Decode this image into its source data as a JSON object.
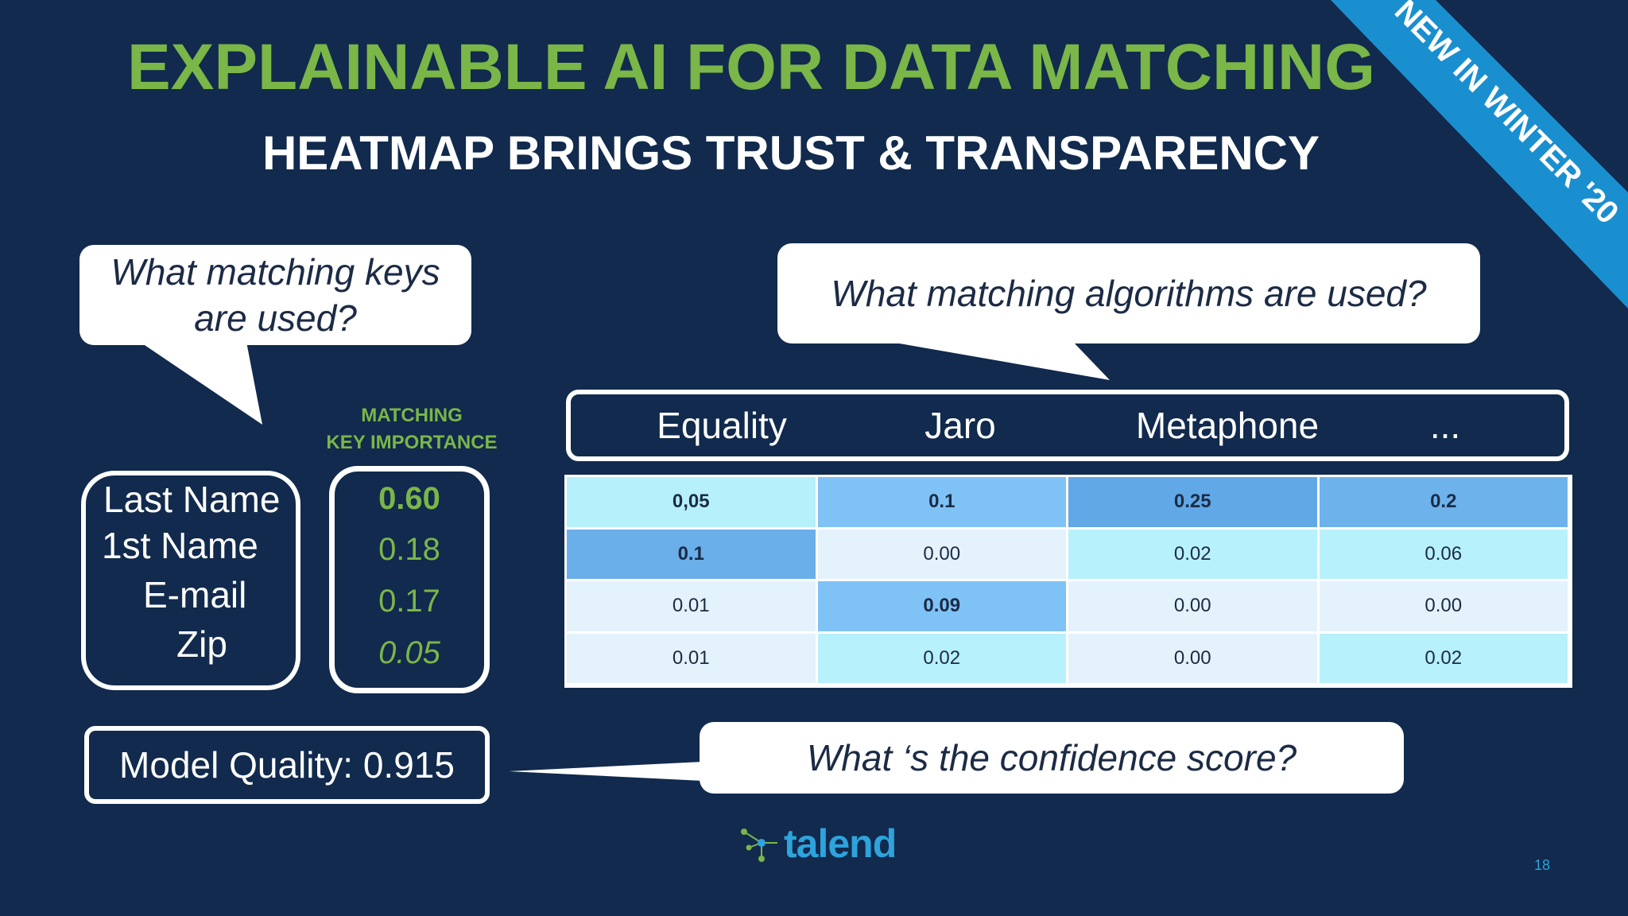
{
  "title": "EXPLAINABLE AI FOR DATA MATCHING",
  "subtitle": "HEATMAP BRINGS TRUST & TRANSPARENCY",
  "ribbon": {
    "text": "NEW IN WINTER '20",
    "color": "#1a8fd0"
  },
  "bubbles": {
    "keys_line1": "What matching keys",
    "keys_line2": "are used?",
    "algorithms": "What matching algorithms are used?",
    "confidence": "What ‘s the confidence score?"
  },
  "importance_label": {
    "line1": "MATCHING",
    "line2": "KEY IMPORTANCE"
  },
  "keys": [
    "Last Name",
    "1st Name",
    "E-mail",
    "Zip"
  ],
  "importance": [
    "0.60",
    "0.18",
    "0.17",
    "0.05"
  ],
  "algorithms": [
    "Equality",
    "Jaro",
    "Metaphone",
    "..."
  ],
  "heatmap": {
    "rows": [
      [
        "0,05",
        "0.1",
        "0.25",
        "0.2"
      ],
      [
        "0.1",
        "0.00",
        "0.02",
        "0.06"
      ],
      [
        "0.01",
        "0.09",
        "0.00",
        "0.00"
      ],
      [
        "0.01",
        "0.02",
        "0.00",
        "0.02"
      ]
    ],
    "colors": [
      [
        "#b6f0fb",
        "#7fc2f6",
        "#61a8e6",
        "#6eb2ec"
      ],
      [
        "#6aaeea",
        "#e4f2fc",
        "#b7f1fb",
        "#b7f1fb"
      ],
      [
        "#e4f2fc",
        "#7fc2f6",
        "#e4f2fc",
        "#e4f2fc"
      ],
      [
        "#e4f2fc",
        "#b7f1fb",
        "#e4f2fc",
        "#b7f1fb"
      ]
    ],
    "bold": [
      [
        true,
        true,
        true,
        true
      ],
      [
        true,
        false,
        false,
        false
      ],
      [
        false,
        true,
        false,
        false
      ],
      [
        false,
        false,
        false,
        false
      ]
    ]
  },
  "model_quality": "Model Quality: 0.915",
  "logo": "talend",
  "page_number": "18",
  "colors": {
    "background": "#112a4d",
    "accent_green": "#7ab648",
    "logo_blue": "#2ea3dc"
  }
}
